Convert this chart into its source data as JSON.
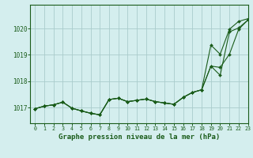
{
  "background_color": "#d4eeee",
  "plot_bg_color": "#d4eeee",
  "grid_color": "#aacccc",
  "line_color": "#1a5c1a",
  "title": "Graphe pression niveau de la mer (hPa)",
  "title_fontsize": 6.5,
  "xlim": [
    -0.5,
    23
  ],
  "ylim": [
    1016.4,
    1020.9
  ],
  "yticks": [
    1017,
    1018,
    1019,
    1020
  ],
  "xticks": [
    0,
    1,
    2,
    3,
    4,
    5,
    6,
    7,
    8,
    9,
    10,
    11,
    12,
    13,
    14,
    15,
    16,
    17,
    18,
    19,
    20,
    21,
    22,
    23
  ],
  "line1": [
    1016.95,
    1017.05,
    1017.1,
    1017.2,
    1016.97,
    1016.87,
    1016.78,
    1016.72,
    1017.3,
    1017.35,
    1017.22,
    1017.27,
    1017.32,
    1017.22,
    1017.17,
    1017.12,
    1017.38,
    1017.57,
    1017.67,
    1018.57,
    1018.52,
    1019.02,
    1019.97,
    1020.32
  ],
  "line2": [
    1016.95,
    1017.05,
    1017.1,
    1017.2,
    1016.97,
    1016.87,
    1016.78,
    1016.72,
    1017.3,
    1017.35,
    1017.22,
    1017.27,
    1017.32,
    1017.22,
    1017.17,
    1017.12,
    1017.38,
    1017.57,
    1017.67,
    1018.57,
    1018.22,
    1019.87,
    1020.02,
    1020.32
  ],
  "line3": [
    1016.95,
    1017.05,
    1017.1,
    1017.2,
    1016.97,
    1016.87,
    1016.78,
    1016.72,
    1017.3,
    1017.35,
    1017.22,
    1017.27,
    1017.32,
    1017.22,
    1017.17,
    1017.12,
    1017.38,
    1017.57,
    1017.67,
    1019.37,
    1019.02,
    1019.97,
    1020.27,
    1020.37
  ]
}
